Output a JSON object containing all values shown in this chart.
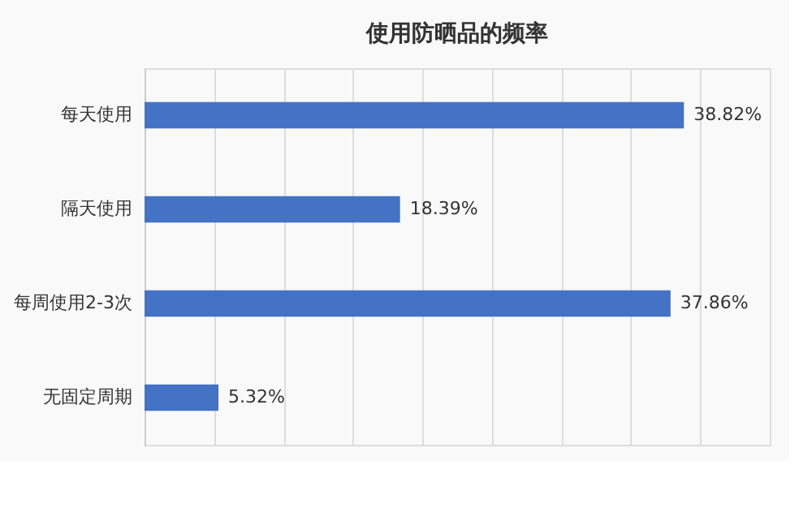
{
  "chart_data": {
    "type": "bar",
    "orientation": "horizontal",
    "title": "使用防晒品的频率",
    "categories": [
      "每天使用",
      "隔天使用",
      "每周使用2-3次",
      "无固定周期"
    ],
    "values": [
      38.82,
      18.39,
      37.86,
      5.32
    ],
    "value_labels": [
      "38.82%",
      "18.39%",
      "37.86%",
      "5.32%"
    ],
    "color": "#4472c4",
    "xlim": [
      0,
      45
    ],
    "xticks": [
      {
        "value": 0,
        "label": null
      },
      {
        "value": 5,
        "label": null
      },
      {
        "value": 10,
        "label": null
      },
      {
        "value": 15,
        "label": null
      },
      {
        "value": 20,
        "label": null
      },
      {
        "value": 25,
        "label": null
      },
      {
        "value": 30,
        "label": null
      },
      {
        "value": 35,
        "label": null
      },
      {
        "value": 40,
        "label": null
      },
      {
        "value": 45,
        "label": null
      }
    ],
    "tick_labels": "y",
    "grid": "x"
  }
}
